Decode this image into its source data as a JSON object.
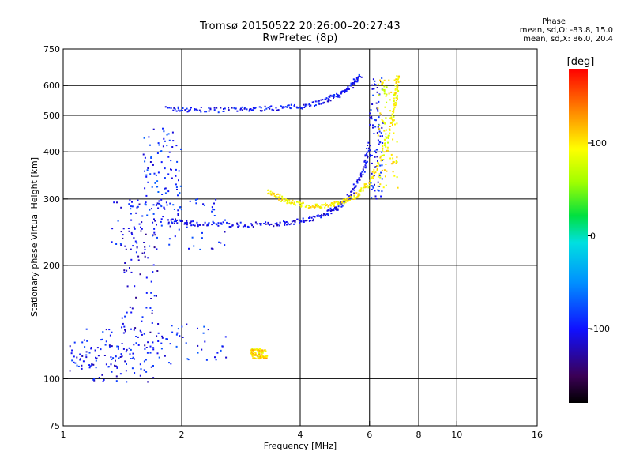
{
  "title": {
    "line1": "Tromsø 20150522 20:26:00–20:27:43",
    "line2": "RwPretec (8p)"
  },
  "stats": {
    "heading": "Phase",
    "o_line": "mean, sd,O: -83.8, 15.0",
    "x_line": "mean, sd,X: 86.0, 20.4"
  },
  "colorbar": {
    "label": "[deg]",
    "ticks": [
      100,
      0,
      -100
    ],
    "range": [
      -180,
      180
    ]
  },
  "chart_data": {
    "type": "scatter",
    "xlabel": "Frequency [MHz]",
    "ylabel": "Stationary phase Virtual Height [km]",
    "x_scale": "log",
    "y_scale": "log",
    "xlim": [
      1,
      16
    ],
    "ylim": [
      75,
      750
    ],
    "x_ticks": [
      1,
      2,
      4,
      6,
      8,
      10,
      16
    ],
    "y_ticks": [
      75,
      100,
      200,
      300,
      400,
      500,
      600,
      750
    ],
    "x_grid_lines": [
      2,
      4,
      6,
      8,
      10
    ],
    "y_grid_lines": [
      100,
      200,
      300,
      400,
      500,
      600
    ],
    "grid": true,
    "color_quantity": "phase [deg]",
    "traces": [
      {
        "kind": "curve",
        "mode": "O",
        "phase": -100,
        "points": [
          [
            1.84,
            520
          ],
          [
            2.2,
            517
          ],
          [
            2.8,
            517
          ],
          [
            3.4,
            522
          ],
          [
            4.0,
            528
          ],
          [
            4.6,
            545
          ],
          [
            5.0,
            565
          ],
          [
            5.4,
            600
          ],
          [
            5.7,
            640
          ]
        ]
      },
      {
        "kind": "curve",
        "mode": "O",
        "phase": -105,
        "points": [
          [
            1.85,
            262
          ],
          [
            2.2,
            258
          ],
          [
            2.8,
            256
          ],
          [
            3.4,
            257
          ],
          [
            4.0,
            262
          ],
          [
            4.6,
            272
          ],
          [
            5.0,
            285
          ],
          [
            5.4,
            310
          ],
          [
            5.8,
            360
          ],
          [
            6.0,
            420
          ]
        ]
      },
      {
        "kind": "curve",
        "mode": "X",
        "phase": 95,
        "points": [
          [
            3.3,
            315
          ],
          [
            3.6,
            300
          ],
          [
            4.0,
            290
          ],
          [
            4.5,
            286
          ],
          [
            5.0,
            292
          ],
          [
            5.5,
            305
          ],
          [
            6.0,
            330
          ],
          [
            6.4,
            380
          ],
          [
            6.8,
            470
          ],
          [
            7.0,
            560
          ],
          [
            7.1,
            640
          ]
        ]
      },
      {
        "kind": "cluster",
        "mode": "O",
        "phase": -95,
        "xr": [
          1.1,
          2.6
        ],
        "yr": [
          108,
          140
        ]
      },
      {
        "kind": "cluster",
        "mode": "O",
        "phase": -100,
        "xr": [
          1.02,
          1.7
        ],
        "yr": [
          98,
          125
        ]
      },
      {
        "kind": "cluster",
        "mode": "O",
        "phase": -110,
        "xr": [
          1.4,
          1.75
        ],
        "yr": [
          130,
          300
        ]
      },
      {
        "kind": "cluster",
        "mode": "O",
        "phase": -90,
        "xr": [
          1.6,
          2.0
        ],
        "yr": [
          280,
          470
        ]
      },
      {
        "kind": "cluster",
        "mode": "O",
        "phase": -95,
        "xr": [
          1.3,
          2.6
        ],
        "yr": [
          220,
          300
        ]
      },
      {
        "kind": "cluster",
        "mode": "O",
        "phase": -100,
        "xr": [
          6.0,
          6.5
        ],
        "yr": [
          300,
          630
        ]
      },
      {
        "kind": "cluster",
        "mode": "X",
        "phase": 90,
        "xr": [
          6.3,
          7.1
        ],
        "yr": [
          320,
          620
        ]
      },
      {
        "kind": "cluster",
        "mode": "X",
        "phase": 100,
        "xr": [
          3.0,
          3.3
        ],
        "yr": [
          113,
          120
        ]
      }
    ]
  }
}
